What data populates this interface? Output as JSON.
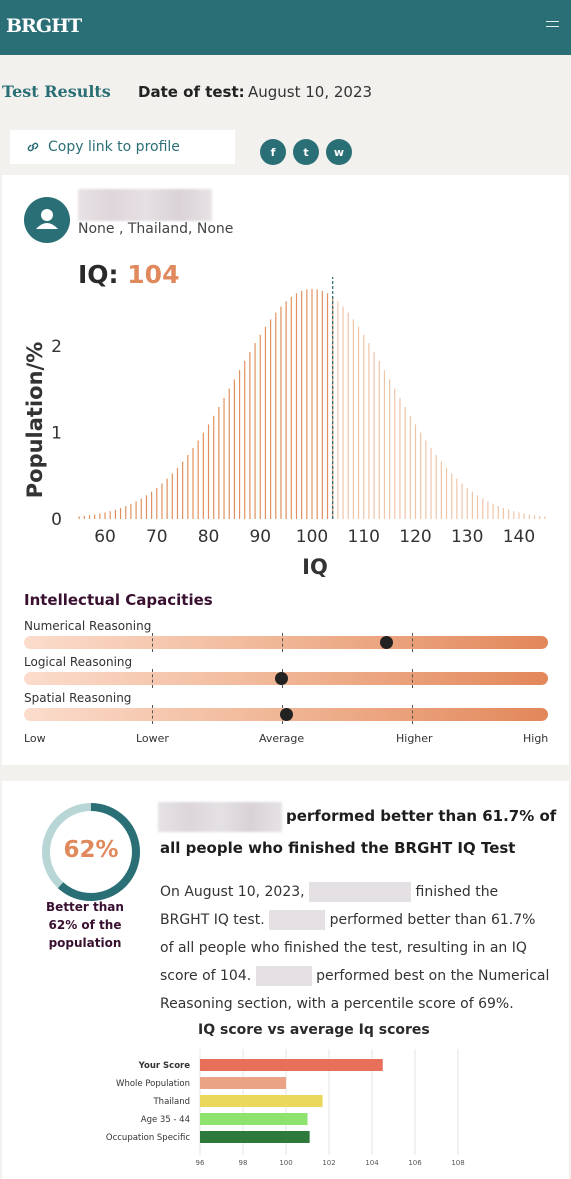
{
  "header": {
    "logo": "BRGHT",
    "menu_icon": "hamburger-icon"
  },
  "page": {
    "title": "Test Results",
    "date_label": "Date of test:",
    "date_value": "August 10, 2023"
  },
  "share": {
    "copy_link": "Copy link to profile",
    "icons": [
      "facebook-icon",
      "twitter-icon",
      "whatsapp-icon"
    ],
    "facebook_glyph": "f",
    "twitter_glyph": "t",
    "whatsapp_glyph": "w"
  },
  "profile": {
    "location": "None , Thailand, None"
  },
  "iq": {
    "label": "IQ:",
    "score": "104"
  },
  "chart_data": {
    "type": "bar",
    "xlabel": "IQ",
    "ylabel": "Population/%",
    "xticks": [
      60,
      70,
      80,
      90,
      100,
      110,
      120,
      130,
      140
    ],
    "yticks": [
      0,
      1,
      2
    ],
    "xlim": [
      54,
      146
    ],
    "ylim": [
      0,
      2.75
    ],
    "distribution": {
      "mean": 100,
      "sd": 15
    },
    "marker": 104
  },
  "capacities": {
    "title": "Intellectual Capacities",
    "items": [
      {
        "label": "Numerical Reasoning",
        "position": 0.69
      },
      {
        "label": "Logical Reasoning",
        "position": 0.49
      },
      {
        "label": "Spatial Reasoning",
        "position": 0.5
      }
    ],
    "scale": [
      "Low",
      "Lower",
      "Average",
      "Higher",
      "High"
    ]
  },
  "percentile": {
    "value": "62%",
    "fraction": 0.617,
    "caption": "Better than 62% of the population",
    "headline_part1": "performed better than 61.7% of",
    "headline_part2": "all people who finished the BRGHT IQ Test",
    "para1": "On August 10, 2023,",
    "para2": "finished the BRGHT IQ test.",
    "para3": "performed better than 61.7% of all people who finished the test, resulting in an IQ score of 104.",
    "para4": "performed best on the Numerical Reasoning section, with a percentile score of 69%."
  },
  "comparison": {
    "title": "IQ score vs average Iq scores",
    "chart_data": {
      "type": "bar",
      "orientation": "horizontal",
      "categories": [
        "Your Score",
        "Whole Population",
        "Thailand",
        "Age 35 - 44",
        "Occupation Specific"
      ],
      "values": [
        104.5,
        100,
        101.7,
        101,
        101.1
      ],
      "colors": [
        "#e8705a",
        "#eba386",
        "#e9d85c",
        "#8ee36e",
        "#2e7a3c"
      ],
      "xticks": [
        96,
        98,
        100,
        102,
        104,
        106,
        108
      ],
      "xlim": [
        96,
        108
      ]
    }
  }
}
